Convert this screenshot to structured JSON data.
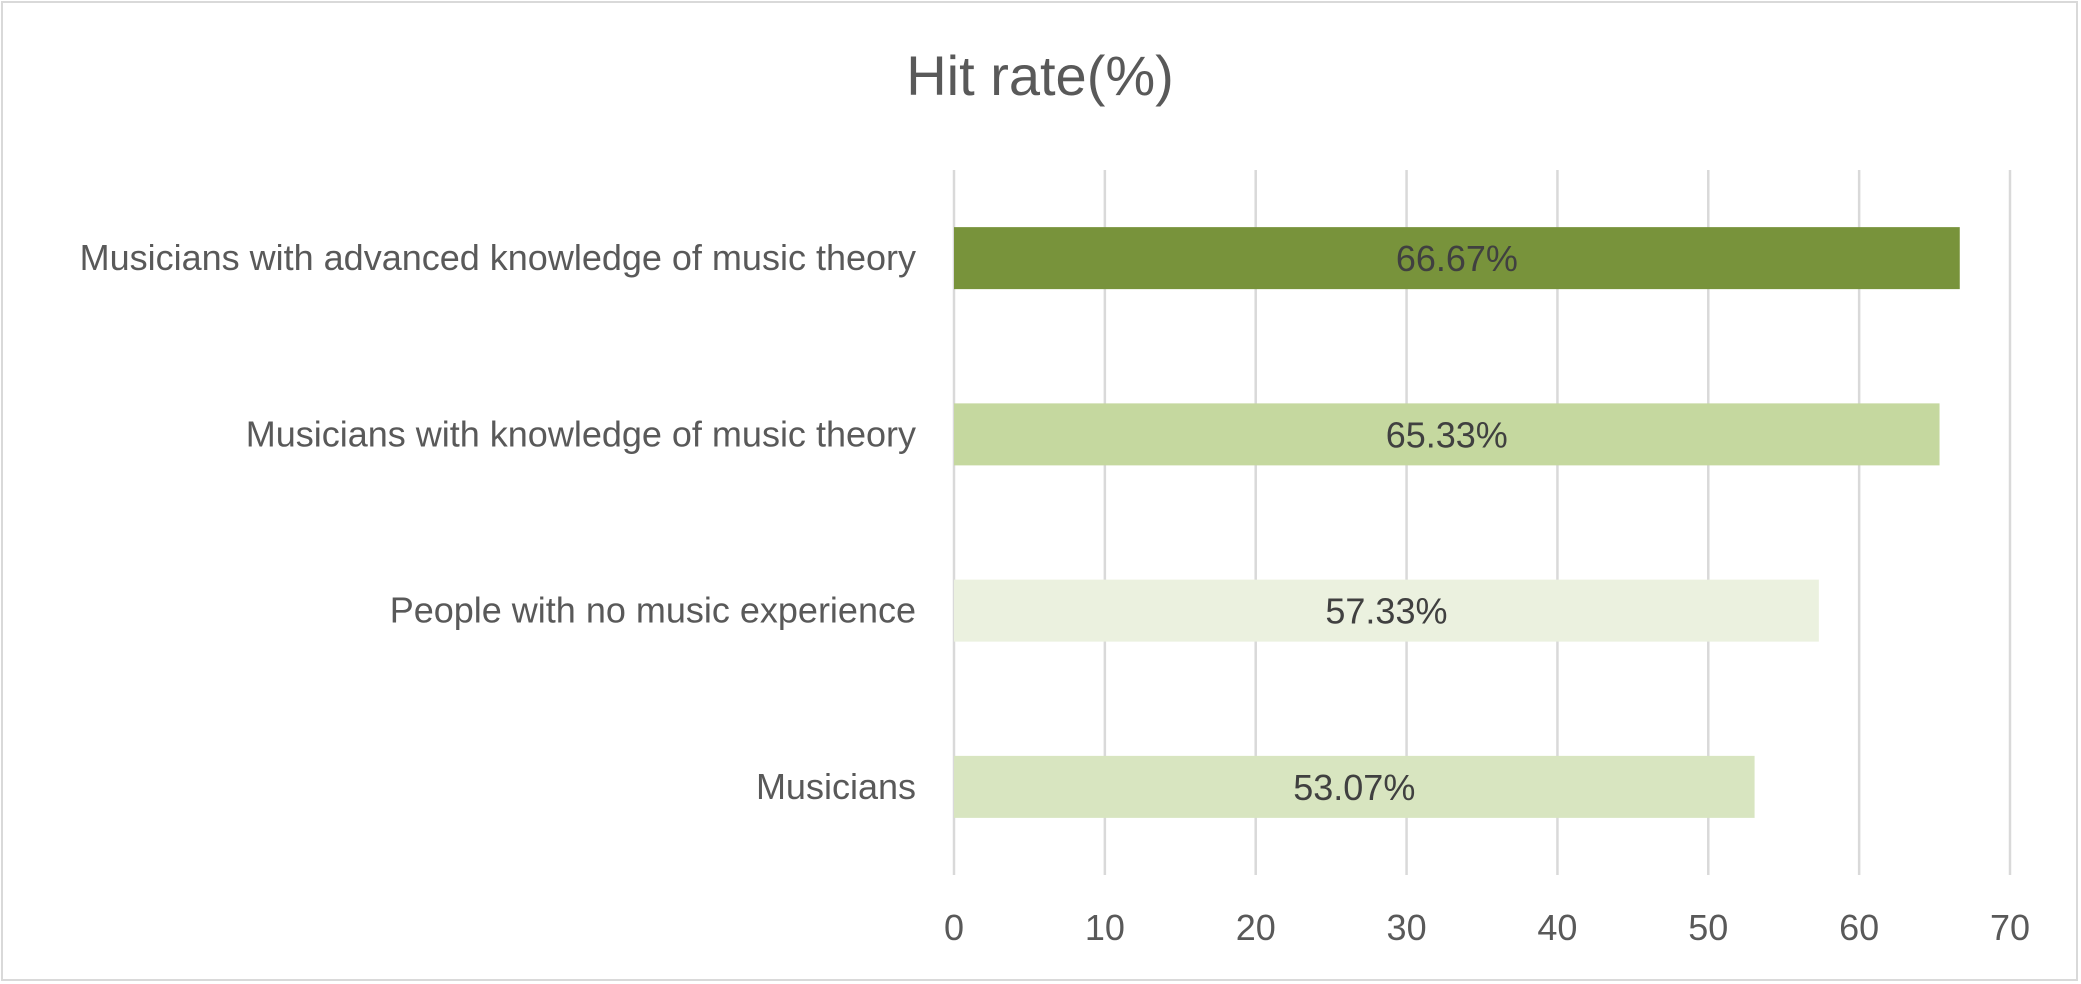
{
  "chart_data": {
    "type": "bar",
    "orientation": "horizontal",
    "title": "Hit rate(%)",
    "xlabel": "",
    "ylabel": "",
    "categories": [
      "Musicians with advanced knowledge of music theory",
      "Musicians with knowledge of music theory",
      "People with no music experience",
      "Musicians"
    ],
    "values": [
      66.67,
      65.33,
      57.33,
      53.07
    ],
    "data_labels": [
      "66.67%",
      "65.33%",
      "57.33%",
      "53.07%"
    ],
    "bar_colors": [
      "#78933b",
      "#c5d89f",
      "#ebf1df",
      "#d8e5c0"
    ],
    "xlim": [
      0,
      70
    ],
    "xticks": [
      0,
      10,
      20,
      30,
      40,
      50,
      60,
      70
    ],
    "tick_labels": [
      "0",
      "10",
      "20",
      "30",
      "40",
      "50",
      "60",
      "70"
    ],
    "grid": true,
    "legend": "none"
  },
  "colors": {
    "gridline": "#d9d9d9",
    "text": "#595959",
    "data_label_text": "#404040"
  }
}
